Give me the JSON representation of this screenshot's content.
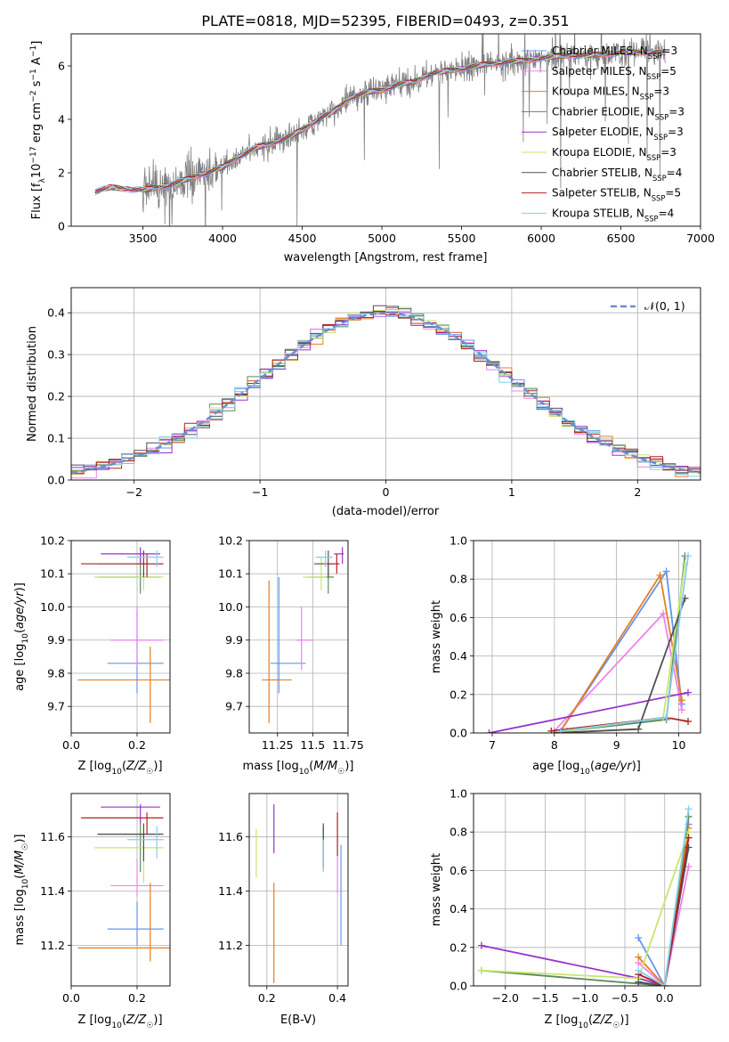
{
  "title": "PLATE=0818, MJD=52395, FIBERID=0493, z=0.351",
  "colors": [
    "#6495ed",
    "#ee82ee",
    "#e67e22",
    "#5a8a5a",
    "#9932cc",
    "#c8e66e",
    "#505050",
    "#b22222",
    "#87ceeb"
  ],
  "chart_data": [
    {
      "type": "line",
      "id": "spectrum",
      "xlabel": "wavelength [Angstrom, rest frame]",
      "ylabel": "Flux [f_λ 10^-17 erg cm^-2 s^-1 A^-1]",
      "xlim": [
        3050,
        7000
      ],
      "ylim": [
        0,
        7.2
      ],
      "xticks": [
        3500,
        4000,
        4500,
        5000,
        5500,
        6000,
        6500,
        7000
      ],
      "yticks": [
        0,
        2,
        4,
        6
      ],
      "grid": false,
      "legend_position": "top-right",
      "legend": [
        {
          "model": "Chabrier MILES",
          "nssp": "3"
        },
        {
          "model": "Salpeter MILES",
          "nssp": "5"
        },
        {
          "model": "Kroupa MILES",
          "nssp": "3"
        },
        {
          "model": "Chabrier ELODIE",
          "nssp": "3"
        },
        {
          "model": "Salpeter ELODIE",
          "nssp": "3"
        },
        {
          "model": "Kroupa ELODIE",
          "nssp": "3"
        },
        {
          "model": "Chabrier STELIB",
          "nssp": "4"
        },
        {
          "model": "Salpeter STELIB",
          "nssp": "5"
        },
        {
          "model": "Kroupa STELIB",
          "nssp": "4"
        }
      ],
      "continuum_x": [
        3200,
        3300,
        3400,
        3500,
        3600,
        3700,
        3800,
        3900,
        4000,
        4100,
        4200,
        4300,
        4400,
        4500,
        4600,
        4700,
        4800,
        4900,
        5000,
        5100,
        5200,
        5300,
        5400,
        5500,
        5600,
        5700,
        5800,
        5900,
        6000,
        6100,
        6200,
        6300,
        6400,
        6500,
        6600,
        6700,
        6800
      ],
      "continuum_y": [
        1.3,
        1.45,
        1.4,
        1.35,
        1.45,
        1.6,
        1.8,
        2.0,
        2.2,
        2.6,
        2.9,
        3.1,
        3.3,
        3.6,
        4.0,
        4.3,
        4.8,
        5.0,
        5.1,
        5.3,
        5.4,
        5.7,
        5.8,
        5.9,
        6.0,
        6.1,
        6.15,
        6.2,
        6.3,
        6.35,
        6.4,
        6.4,
        6.45,
        6.5,
        6.5,
        6.5,
        6.5
      ]
    },
    {
      "type": "line",
      "id": "residuals",
      "xlabel": "(data-model)/error",
      "ylabel": "Normed distribution",
      "xlim": [
        -2.5,
        2.5
      ],
      "ylim": [
        0,
        0.46
      ],
      "xticks": [
        -2,
        -1,
        0,
        1,
        2
      ],
      "yticks": [
        0.0,
        0.1,
        0.2,
        0.3,
        0.4
      ],
      "grid": true,
      "legend_position": "top-right",
      "legend": [
        "𝒩(0, 1)"
      ]
    },
    {
      "type": "scatter",
      "id": "age-vs-Z",
      "xlabel": "Z [log10(Z/Z☉)]",
      "ylabel": "age  [log10(age/yr)]",
      "xlim": [
        0.0,
        0.3
      ],
      "ylim": [
        9.62,
        10.2
      ],
      "xticks": [
        0.0,
        0.2
      ],
      "yticks": [
        9.7,
        9.8,
        9.9,
        10.0,
        10.1,
        10.2
      ],
      "grid": true,
      "points": [
        {
          "x": 0.2,
          "y": 9.83,
          "xerr": [
            0.09,
            0.08
          ],
          "yerr": [
            0.09,
            0.16
          ]
        },
        {
          "x": 0.2,
          "y": 9.9,
          "xerr": [
            0.08,
            0.08
          ],
          "yerr": [
            0.08,
            0.1
          ]
        },
        {
          "x": 0.24,
          "y": 9.78,
          "xerr": [
            0.22,
            0.06
          ],
          "yerr": [
            0.13,
            0.1
          ]
        },
        {
          "x": 0.21,
          "y": 10.09,
          "xerr": [
            0.13,
            0.06
          ],
          "yerr": [
            0.05,
            0.07
          ]
        },
        {
          "x": 0.21,
          "y": 10.16,
          "xerr": [
            0.12,
            0.06
          ],
          "yerr": [
            0.03,
            0.02
          ]
        },
        {
          "x": 0.22,
          "y": 10.09,
          "xerr": [
            0.15,
            0.06
          ],
          "yerr": [
            0.04,
            0.06
          ]
        },
        {
          "x": 0.22,
          "y": 10.13,
          "xerr": [
            0.14,
            0.06
          ],
          "yerr": [
            0.04,
            0.04
          ]
        },
        {
          "x": 0.23,
          "y": 10.13,
          "xerr": [
            0.2,
            0.05
          ],
          "yerr": [
            0.04,
            0.03
          ]
        },
        {
          "x": 0.26,
          "y": 10.15,
          "xerr": [
            0.09,
            0.02
          ],
          "yerr": [
            0.03,
            0.02
          ]
        }
      ]
    },
    {
      "type": "scatter",
      "id": "age-vs-mass",
      "xlabel": "mass [log10(M/M☉)]",
      "ylabel": "",
      "xlim": [
        11.05,
        11.75
      ],
      "ylim": [
        9.62,
        10.2
      ],
      "xticks": [
        11.25,
        11.5,
        11.75
      ],
      "yticks": [
        9.7,
        9.8,
        9.9,
        10.0,
        10.1,
        10.2
      ],
      "grid": true,
      "points": [
        {
          "x": 11.26,
          "y": 9.83,
          "xerr": [
            0.06,
            0.19
          ],
          "yerr": [
            0.09,
            0.26
          ]
        },
        {
          "x": 11.42,
          "y": 9.9,
          "xerr": [
            0.04,
            0.08
          ],
          "yerr": [
            0.09,
            0.1
          ]
        },
        {
          "x": 11.19,
          "y": 9.78,
          "xerr": [
            0.05,
            0.16
          ],
          "yerr": [
            0.13,
            0.3
          ]
        },
        {
          "x": 11.61,
          "y": 10.09,
          "xerr": [
            0.14,
            0.04
          ],
          "yerr": [
            0.05,
            0.04
          ]
        },
        {
          "x": 11.71,
          "y": 10.16,
          "xerr": [
            0.06,
            0.01
          ],
          "yerr": [
            0.03,
            0.02
          ]
        },
        {
          "x": 11.56,
          "y": 10.09,
          "xerr": [
            0.13,
            0.04
          ],
          "yerr": [
            0.04,
            0.06
          ]
        },
        {
          "x": 11.61,
          "y": 10.13,
          "xerr": [
            0.1,
            0.04
          ],
          "yerr": [
            0.04,
            0.04
          ]
        },
        {
          "x": 11.67,
          "y": 10.13,
          "xerr": [
            0.06,
            0.02
          ],
          "yerr": [
            0.03,
            0.03
          ]
        },
        {
          "x": 11.59,
          "y": 10.15,
          "xerr": [
            0.07,
            0.05
          ],
          "yerr": [
            0.03,
            0.02
          ]
        }
      ]
    },
    {
      "type": "line",
      "id": "massweight-vs-age",
      "xlabel": "age  [log10(age/yr)]",
      "ylabel": "mass weight",
      "xlim": [
        6.7,
        10.35
      ],
      "ylim": [
        0.0,
        1.0
      ],
      "xticks": [
        7,
        8,
        9,
        10
      ],
      "yticks": [
        0.0,
        0.2,
        0.4,
        0.6,
        0.8,
        1.0
      ],
      "grid": true,
      "series": [
        {
          "x": [
            8.1,
            9.8,
            10.05
          ],
          "y": [
            0.01,
            0.84,
            0.15
          ]
        },
        {
          "x": [
            8.0,
            9.75,
            10.05
          ],
          "y": [
            0.01,
            0.62,
            0.12
          ]
        },
        {
          "x": [
            8.1,
            9.7,
            10.05
          ],
          "y": [
            0.01,
            0.82,
            0.17
          ]
        },
        {
          "x": [
            8.2,
            9.8,
            10.1
          ],
          "y": [
            0.01,
            0.07,
            0.92
          ]
        },
        {
          "x": [
            6.95,
            10.15
          ],
          "y": [
            0.0,
            0.21
          ]
        },
        {
          "x": [
            8.2,
            9.75,
            10.1
          ],
          "y": [
            0.01,
            0.08,
            0.88
          ]
        },
        {
          "x": [
            8.0,
            9.35,
            10.1
          ],
          "y": [
            0.0,
            0.02,
            0.7
          ]
        },
        {
          "x": [
            7.95,
            9.8,
            10.15
          ],
          "y": [
            0.01,
            0.08,
            0.06
          ]
        },
        {
          "x": [
            8.1,
            9.8,
            10.15
          ],
          "y": [
            0.01,
            0.08,
            0.92
          ]
        }
      ]
    },
    {
      "type": "scatter",
      "id": "mass-vs-Z",
      "xlabel": "Z [log10(Z/Z☉)]",
      "ylabel": "mass [log10(M/M☉)]",
      "xlim": [
        0.0,
        0.3
      ],
      "ylim": [
        11.05,
        11.76
      ],
      "xticks": [
        0.0,
        0.2
      ],
      "yticks": [
        11.2,
        11.4,
        11.6
      ],
      "grid": true,
      "points": [
        {
          "x": 0.2,
          "y": 11.26,
          "xerr": [
            0.09,
            0.08
          ],
          "yerr": [
            0.06,
            0.1
          ]
        },
        {
          "x": 0.2,
          "y": 11.42,
          "xerr": [
            0.08,
            0.08
          ],
          "yerr": [
            0.04,
            0.1
          ]
        },
        {
          "x": 0.24,
          "y": 11.19,
          "xerr": [
            0.22,
            0.06
          ],
          "yerr": [
            0.05,
            0.24
          ]
        },
        {
          "x": 0.21,
          "y": 11.61,
          "xerr": [
            0.13,
            0.06
          ],
          "yerr": [
            0.14,
            0.04
          ]
        },
        {
          "x": 0.21,
          "y": 11.71,
          "xerr": [
            0.12,
            0.06
          ],
          "yerr": [
            0.06,
            0.01
          ]
        },
        {
          "x": 0.22,
          "y": 11.56,
          "xerr": [
            0.15,
            0.06
          ],
          "yerr": [
            0.13,
            0.04
          ]
        },
        {
          "x": 0.22,
          "y": 11.61,
          "xerr": [
            0.14,
            0.06
          ],
          "yerr": [
            0.1,
            0.04
          ]
        },
        {
          "x": 0.23,
          "y": 11.67,
          "xerr": [
            0.2,
            0.05
          ],
          "yerr": [
            0.06,
            0.02
          ]
        },
        {
          "x": 0.26,
          "y": 11.59,
          "xerr": [
            0.09,
            0.02
          ],
          "yerr": [
            0.07,
            0.05
          ]
        }
      ]
    },
    {
      "type": "scatter",
      "id": "mass-vs-ebv",
      "xlabel": "E(B-V)",
      "ylabel": "",
      "xlim": [
        0.15,
        0.43
      ],
      "ylim": [
        11.05,
        11.76
      ],
      "xticks": [
        0.2,
        0.4
      ],
      "yticks": [
        11.2,
        11.4,
        11.6
      ],
      "grid": true,
      "points": [
        {
          "x": 0.41,
          "y": 11.32,
          "yerr": [
            0.12,
            0.25
          ]
        },
        {
          "x": 0.4,
          "y": 11.44,
          "yerr": [
            0.05,
            0.1
          ]
        },
        {
          "x": 0.22,
          "y": 11.24,
          "yerr": [
            0.18,
            0.19
          ]
        },
        {
          "x": 0.36,
          "y": 11.54,
          "yerr": [
            0.06,
            0.1
          ]
        },
        {
          "x": 0.22,
          "y": 11.63,
          "yerr": [
            0.09,
            0.09
          ]
        },
        {
          "x": 0.17,
          "y": 11.55,
          "yerr": [
            0.1,
            0.08
          ]
        },
        {
          "x": 0.36,
          "y": 11.55,
          "yerr": [
            0.06,
            0.1
          ]
        },
        {
          "x": 0.4,
          "y": 11.64,
          "yerr": [
            0.11,
            0.05
          ]
        },
        {
          "x": 0.36,
          "y": 11.53,
          "yerr": [
            0.06,
            0.06
          ]
        }
      ]
    },
    {
      "type": "line",
      "id": "massweight-vs-Z",
      "xlabel": "Z [log10(Z/Z☉)]",
      "ylabel": "mass weight",
      "xlim": [
        -2.4,
        0.45
      ],
      "ylim": [
        0.0,
        1.0
      ],
      "xticks": [
        -2.0,
        -1.5,
        -1.0,
        -0.5,
        0.0
      ],
      "yticks": [
        0.0,
        0.2,
        0.4,
        0.6,
        0.8,
        1.0
      ],
      "grid": true,
      "series": [
        {
          "x": [
            -0.33,
            0.0,
            0.3
          ],
          "y": [
            0.25,
            0.0,
            0.84
          ]
        },
        {
          "x": [
            -0.33,
            0.0,
            0.3
          ],
          "y": [
            0.12,
            0.0,
            0.62
          ]
        },
        {
          "x": [
            -0.33,
            0.0,
            0.3
          ],
          "y": [
            0.15,
            0.0,
            0.82
          ]
        },
        {
          "x": [
            -2.3,
            0.0,
            0.3
          ],
          "y": [
            0.08,
            0.0,
            0.88
          ]
        },
        {
          "x": [
            -2.3,
            -0.33,
            0.0
          ],
          "y": [
            0.21,
            0.04,
            0.0
          ]
        },
        {
          "x": [
            -2.3,
            -0.33,
            0.3
          ],
          "y": [
            0.08,
            0.04,
            0.8
          ]
        },
        {
          "x": [
            -0.33,
            0.0,
            0.3
          ],
          "y": [
            0.02,
            0.0,
            0.72
          ]
        },
        {
          "x": [
            -0.33,
            0.0,
            0.3
          ],
          "y": [
            0.06,
            0.0,
            0.77
          ]
        },
        {
          "x": [
            -0.33,
            0.0,
            0.3
          ],
          "y": [
            0.08,
            0.0,
            0.92
          ]
        }
      ]
    }
  ]
}
